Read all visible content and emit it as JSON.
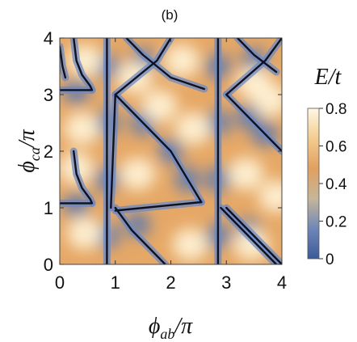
{
  "panel_label": "(b)",
  "chart_data": {
    "type": "heatmap",
    "title": "(b)",
    "xlabel_main": "ϕ",
    "xlabel_sub": "ab",
    "xlabel_tail": "/π",
    "ylabel_main": "ϕ",
    "ylabel_sub": "ca",
    "ylabel_tail": "/π",
    "xlim": [
      0,
      4
    ],
    "ylim": [
      0,
      4
    ],
    "x_ticks": [
      0,
      1,
      2,
      3,
      4
    ],
    "y_ticks": [
      0,
      1,
      2,
      3,
      4
    ],
    "x_tick_labels": [
      "0",
      "1",
      "2",
      "3",
      "4"
    ],
    "y_tick_labels": [
      "0",
      "1",
      "2",
      "3",
      "4"
    ],
    "colorbar": {
      "label": "E/t",
      "range": [
        0,
        0.8
      ],
      "ticks": [
        0,
        0.2,
        0.4,
        0.6,
        0.8
      ],
      "tick_labels": [
        "0",
        "0.2",
        "0.4",
        "0.6",
        "0.8"
      ],
      "colors": [
        "#3b5a9a",
        "#6f87b8",
        "#c6b69a",
        "#e0a060",
        "#f3cc90",
        "#fff8e4"
      ]
    },
    "zero_lines_description": "dark curves where E/t = 0",
    "zero_curves": [
      [
        [
          0.25,
          4.0
        ],
        [
          0.3,
          3.6
        ],
        [
          0.4,
          3.35
        ],
        [
          0.55,
          3.15
        ],
        [
          0.58,
          3.08
        ]
      ],
      [
        [
          0.0,
          3.08
        ],
        [
          0.58,
          3.08
        ]
      ],
      [
        [
          0.25,
          2.0
        ],
        [
          0.3,
          1.6
        ],
        [
          0.4,
          1.35
        ],
        [
          0.55,
          1.15
        ],
        [
          0.58,
          1.08
        ]
      ],
      [
        [
          0.0,
          1.08
        ],
        [
          0.58,
          1.08
        ]
      ],
      [
        [
          0.85,
          0.0
        ],
        [
          0.85,
          4.0
        ]
      ],
      [
        [
          0.0,
          3.85
        ],
        [
          0.05,
          3.5
        ],
        [
          0.1,
          3.3
        ]
      ],
      [
        [
          1.0,
          3.0
        ],
        [
          2.0,
          2.0
        ],
        [
          2.55,
          1.1
        ]
      ],
      [
        [
          0.92,
          1.0
        ],
        [
          1.0,
          3.0
        ]
      ],
      [
        [
          1.0,
          0.95
        ],
        [
          2.55,
          1.1
        ]
      ],
      [
        [
          1.0,
          3.0
        ],
        [
          1.75,
          3.6
        ],
        [
          2.0,
          4.0
        ]
      ],
      [
        [
          1.2,
          4.0
        ],
        [
          1.5,
          3.7
        ],
        [
          2.0,
          3.3
        ],
        [
          2.6,
          3.1
        ]
      ],
      [
        [
          1.0,
          1.0
        ],
        [
          1.3,
          0.6
        ],
        [
          1.6,
          0.3
        ],
        [
          1.9,
          0.0
        ]
      ],
      [
        [
          2.85,
          0.0
        ],
        [
          2.85,
          4.0
        ]
      ],
      [
        [
          3.0,
          3.0
        ],
        [
          4.0,
          2.0
        ]
      ],
      [
        [
          3.0,
          3.0
        ],
        [
          3.7,
          3.6
        ],
        [
          4.0,
          4.0
        ]
      ],
      [
        [
          3.2,
          4.0
        ],
        [
          3.5,
          3.7
        ],
        [
          3.9,
          3.4
        ]
      ],
      [
        [
          2.9,
          1.0
        ],
        [
          3.3,
          0.6
        ],
        [
          3.6,
          0.3
        ],
        [
          3.9,
          0.0
        ]
      ],
      [
        [
          3.0,
          1.0
        ],
        [
          4.0,
          0.0
        ]
      ]
    ]
  }
}
